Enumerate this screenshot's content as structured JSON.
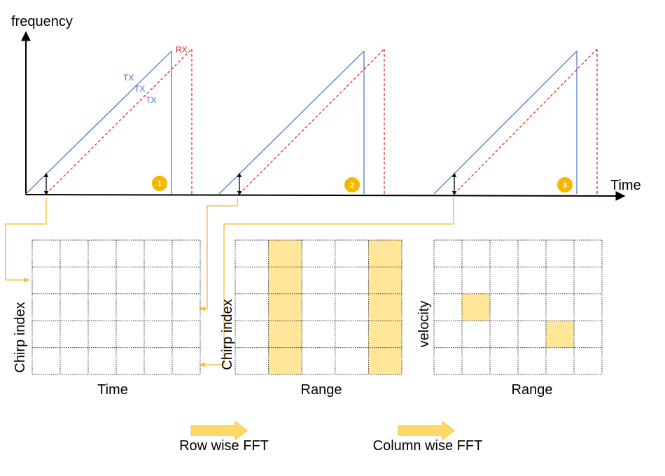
{
  "top_chart": {
    "y_axis_label": "frequency",
    "x_axis_label": "Time",
    "signals": [
      {
        "name": "TX",
        "color": "#4472c4",
        "style": "solid"
      },
      {
        "name": "RX",
        "color": "#e31a1c",
        "style": "dashed"
      }
    ],
    "tx_labels": [
      "TX",
      "TX",
      "TX"
    ],
    "rx_label": "RX",
    "chirp_count": 3,
    "chirp_markers": [
      "1",
      "2",
      "3"
    ]
  },
  "grids": [
    {
      "id": "raw",
      "rows": 5,
      "cols": 6,
      "y_label": "Chirp index",
      "x_label": "Time",
      "highlighted_columns": [],
      "highlighted_cells": []
    },
    {
      "id": "range",
      "rows": 5,
      "cols": 5,
      "y_label": "Chirp index",
      "x_label": "Range",
      "highlighted_columns": [
        1,
        4
      ],
      "highlighted_cells": []
    },
    {
      "id": "range-doppler",
      "rows": 5,
      "cols": 6,
      "y_label": "velocity",
      "x_label": "Range",
      "highlighted_columns": [],
      "highlighted_cells": [
        [
          2,
          1
        ],
        [
          3,
          4
        ]
      ]
    }
  ],
  "steps": [
    {
      "label": "Row wise FFT"
    },
    {
      "label": "Column wise FFT"
    }
  ],
  "colors": {
    "tx": "#4472c4",
    "rx": "#e31a1c",
    "highlight": "#ffe699",
    "highlight_border": "#f0c040",
    "connector": "#f5c242",
    "marker": "#f5b800",
    "arrow": "#ffd966",
    "grid_line": "#333333",
    "axis": "#000000"
  }
}
